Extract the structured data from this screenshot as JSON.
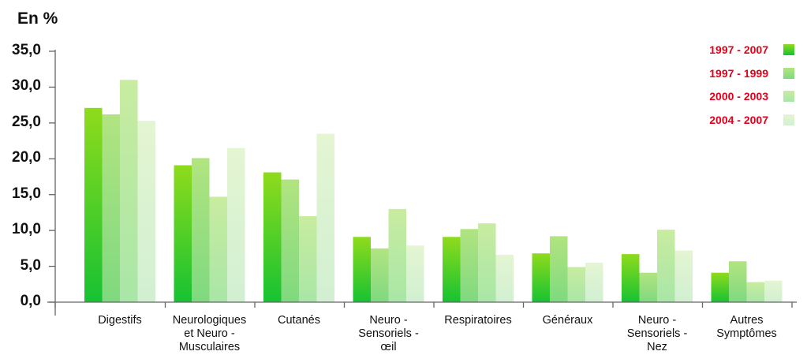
{
  "chart_data": {
    "type": "bar",
    "unit_label": "En %",
    "categories": [
      "Digestifs",
      "Neurologiques et Neuro - Musculaires",
      "Cutanés",
      "Neuro - Sensoriels - œil",
      "Respiratoires",
      "Généraux",
      "Neuro - Sensoriels - Nez",
      "Autres Symptômes"
    ],
    "category_lines": [
      [
        "Digestifs"
      ],
      [
        "Neurologiques",
        "et Neuro -",
        "Musculaires"
      ],
      [
        "Cutanés"
      ],
      [
        "Neuro -",
        "Sensoriels -",
        "œil"
      ],
      [
        "Respiratoires"
      ],
      [
        "Généraux"
      ],
      [
        "Neuro -",
        "Sensoriels -",
        "Nez"
      ],
      [
        "Autres",
        "Symptômes"
      ]
    ],
    "series": [
      {
        "name": "1997 - 2007",
        "values": [
          27.1,
          19.1,
          18.1,
          9.1,
          9.1,
          6.8,
          6.7,
          4.1
        ],
        "color_top": "#8fdb1c",
        "color_bottom": "#16c233"
      },
      {
        "name": "1997 - 1999",
        "values": [
          26.2,
          20.1,
          17.1,
          7.5,
          10.2,
          9.2,
          4.1,
          5.7
        ],
        "color_top": "#b2e481",
        "color_bottom": "#7fd97f"
      },
      {
        "name": "2000 - 2003",
        "values": [
          31.0,
          14.7,
          12.0,
          13.0,
          11.0,
          4.9,
          10.1,
          2.8
        ],
        "color_top": "#c8eca0",
        "color_bottom": "#a9e6a7"
      },
      {
        "name": "2004 - 2007",
        "values": [
          25.3,
          21.5,
          23.5,
          7.9,
          6.6,
          5.5,
          7.2,
          3.0
        ],
        "color_top": "#e4f5d2",
        "color_bottom": "#d1f0d1"
      }
    ],
    "ylim": [
      0,
      35
    ],
    "yticks": [
      "0,0",
      "5,0",
      "10,0",
      "15,0",
      "20,0",
      "25,0",
      "30,0",
      "35,0"
    ],
    "legend_position": "top-right",
    "legend_text_color": "#e3001b",
    "grid": false
  }
}
